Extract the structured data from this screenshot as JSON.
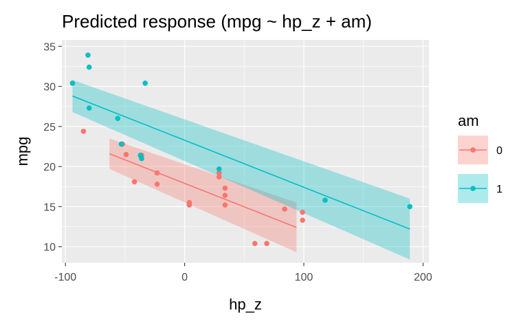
{
  "chart_data": {
    "type": "scatter",
    "title": "Predicted response (mpg ~ hp_z + am)",
    "xlabel": "hp_z",
    "ylabel": "mpg",
    "xlim": [
      -103,
      205
    ],
    "ylim": [
      8,
      35.8
    ],
    "xticks": [
      -100,
      0,
      100,
      200
    ],
    "yticks": [
      10,
      15,
      20,
      25,
      30,
      35
    ],
    "grid": true,
    "legend": {
      "title": "am",
      "position": "right"
    },
    "series": [
      {
        "name": "0",
        "color": "#F8766D",
        "points": [
          [
            -84.9,
            24.4
          ],
          [
            -53.1,
            22.8
          ],
          [
            -52.1,
            22.8
          ],
          [
            -49.1,
            21.5
          ],
          [
            -36.1,
            21.4
          ],
          [
            -42.1,
            18.1
          ],
          [
            -23.1,
            19.2
          ],
          [
            -23.1,
            17.8
          ],
          [
            3.9,
            15.5
          ],
          [
            3.9,
            15.2
          ],
          [
            28.9,
            19.2
          ],
          [
            28.9,
            18.7
          ],
          [
            33.9,
            17.3
          ],
          [
            33.9,
            16.4
          ],
          [
            33.9,
            15.2
          ],
          [
            58.9,
            10.4
          ],
          [
            68.9,
            10.4
          ],
          [
            83.9,
            14.7
          ],
          [
            98.9,
            14.3
          ],
          [
            98.9,
            13.3
          ]
        ],
        "fit": {
          "x": [
            -63.1,
            93.9
          ],
          "y": [
            21.6,
            12.4
          ]
        },
        "ribbon": {
          "x": [
            -63.1,
            93.9
          ],
          "lower": [
            19.7,
            9.3
          ],
          "upper": [
            23.5,
            15.5
          ]
        }
      },
      {
        "name": "1",
        "color": "#00BFC4",
        "points": [
          [
            -94.1,
            30.4
          ],
          [
            -81.1,
            33.9
          ],
          [
            -80.1,
            32.4
          ],
          [
            -80.1,
            27.3
          ],
          [
            -56.1,
            26.0
          ],
          [
            -33.1,
            30.4
          ],
          [
            -53.1,
            22.8
          ],
          [
            -37.1,
            21.4
          ],
          [
            -36.1,
            21.0
          ],
          [
            28.9,
            19.7
          ],
          [
            117.9,
            15.8
          ],
          [
            188.9,
            15.0
          ]
        ],
        "fit": {
          "x": [
            -94.1,
            188.9
          ],
          "y": [
            28.8,
            12.2
          ]
        },
        "ribbon": {
          "x": [
            -94.1,
            188.9
          ],
          "lower": [
            26.8,
            8.4
          ],
          "upper": [
            30.8,
            16.0
          ]
        }
      }
    ]
  }
}
